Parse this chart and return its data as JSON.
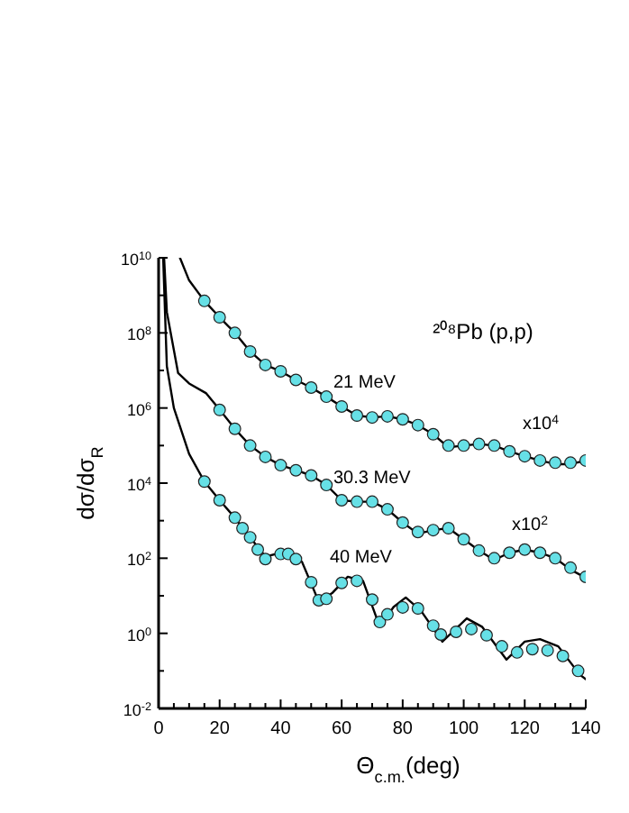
{
  "chart_data": {
    "type": "line",
    "title": "²⁰⁸Pb (p,p)",
    "xlabel": "Θ$_{c.m.}$(deg)",
    "ylabel": "dσ/dσ$_{R}$",
    "log": "y",
    "xlim": [
      0,
      140
    ],
    "ylim": [
      0.01,
      10000000000
    ],
    "xticks": [
      0,
      20,
      40,
      60,
      80,
      100,
      120,
      140
    ],
    "yticks": [
      {
        "value": 0.01,
        "label": "10$^{-2}$"
      },
      {
        "value": 1,
        "label": "10$^{0}$"
      },
      {
        "value": 100,
        "label": "10$^{2}$"
      },
      {
        "value": 10000,
        "label": "10$^{4}$"
      },
      {
        "value": 1000000,
        "label": "10$^{6}$"
      },
      {
        "value": 100000000,
        "label": "10$^{8}$"
      },
      {
        "value": 10000000000,
        "label": "10$^{10}$"
      }
    ],
    "annotations": [
      "21 MeV",
      "30.3 MeV",
      "40 MeV",
      "x10$^{4}$",
      "x10$^{2}$"
    ],
    "series": [
      {
        "color": "#000000",
        "line_style": "solid",
        "x": [
          7,
          10,
          15,
          20,
          25,
          30,
          35,
          40,
          45,
          50,
          55,
          60,
          65,
          70,
          75,
          80,
          85,
          90,
          95,
          100,
          105,
          110,
          115,
          120,
          125,
          130,
          135,
          140
        ],
        "values": [
          10000000000.0,
          2500000000.0,
          710000000.0,
          260000000.0,
          100000000.0,
          32000000.0,
          14000000.0,
          9500000.0,
          5600000.0,
          3500000.0,
          2000000.0,
          1100000.0,
          630000.0,
          560000.0,
          600000.0,
          500000.0,
          350000.0,
          200000.0,
          90000.0,
          100000.0,
          110000.0,
          100000.0,
          70000.0,
          52000.0,
          40000.0,
          32000.0,
          32000.0,
          40000.0
        ]
      },
      {
        "color": "#000000",
        "line_style": "solid",
        "x": [
          1.8,
          2.7,
          6.4,
          10,
          15.5,
          20,
          25,
          30,
          35,
          40,
          45,
          50,
          55,
          60,
          65,
          70,
          75,
          80,
          85,
          90,
          95,
          100,
          105,
          110,
          115,
          120,
          125,
          130,
          135,
          140
        ],
        "values": [
          10000000000.0,
          360000000.0,
          8500000.0,
          4500000.0,
          2500000.0,
          900000.0,
          280000.0,
          100000.0,
          50000.0,
          30000.0,
          22000.0,
          16000.0,
          8900,
          3500,
          3200,
          3200,
          2000,
          890,
          450,
          560,
          630,
          320,
          160,
          90,
          140,
          170,
          140,
          100,
          50,
          30
        ]
      },
      {
        "color": "#000000",
        "line_style": "solid",
        "x": [
          1.5,
          2.7,
          5,
          10,
          15,
          20,
          25,
          30,
          35,
          40,
          43,
          47,
          52.5,
          57,
          62,
          67,
          72.5,
          77,
          81,
          86,
          93,
          101,
          106,
          114,
          120,
          125,
          131,
          138,
          140
        ],
        "values": [
          10000000000.0,
          13000000.0,
          1000000.0,
          60000.0,
          11000,
          3500,
          1200,
          360,
          110,
          140,
          150,
          80,
          7,
          12,
          32,
          25,
          1.5,
          5,
          9,
          4,
          0.6,
          2.5,
          1.5,
          0.2,
          0.6,
          0.7,
          0.45,
          0.08,
          0.06
        ]
      },
      {
        "type": "scatter",
        "color": "#66e0e6",
        "marker": "circle",
        "x": [
          15,
          20,
          25,
          30,
          35,
          40,
          45,
          50,
          55,
          60,
          65,
          70,
          75,
          80,
          85,
          90,
          95,
          100,
          105,
          110,
          115,
          120,
          125,
          130,
          135,
          140
        ],
        "values": [
          710000000.0,
          260000000.0,
          100000000.0,
          32000000.0,
          14000000.0,
          9500000.0,
          5600000.0,
          3500000.0,
          2000000.0,
          1100000.0,
          630000.0,
          560000.0,
          600000.0,
          500000.0,
          350000.0,
          200000.0,
          100000.0,
          100000.0,
          110000.0,
          100000.0,
          70000.0,
          52000.0,
          40000.0,
          35000.0,
          35000.0,
          40000.0
        ]
      },
      {
        "type": "scatter",
        "color": "#66e0e6",
        "marker": "circle",
        "x": [
          20,
          25,
          30,
          35,
          40,
          45,
          50,
          55,
          60,
          65,
          70,
          75,
          80,
          85,
          90,
          95,
          100,
          105,
          110,
          115,
          120,
          125,
          130,
          135,
          140
        ],
        "values": [
          890000.0,
          280000.0,
          100000.0,
          50000.0,
          30000.0,
          22000.0,
          16000.0,
          8900,
          3500,
          3200,
          3200,
          2000,
          890,
          500,
          560,
          630,
          320,
          160,
          100,
          140,
          170,
          140,
          100,
          56,
          32
        ]
      },
      {
        "type": "scatter",
        "color": "#66e0e6",
        "marker": "circle",
        "x": [
          15,
          20,
          25,
          27.5,
          30,
          32.5,
          35,
          40,
          42.5,
          45,
          50,
          52.5,
          55,
          60,
          65,
          70,
          72.5,
          75,
          80,
          85,
          90,
          92.5,
          97.5,
          102.5,
          107.5,
          112.5,
          117.5,
          122.5,
          127.5,
          132.5,
          137.5
        ],
        "values": [
          11000,
          3500,
          1200,
          630,
          360,
          170,
          95,
          130,
          130,
          95,
          23,
          7.6,
          8.3,
          22,
          25,
          7.9,
          2,
          3.2,
          4.9,
          4.6,
          1.6,
          0.93,
          1.1,
          1.3,
          0.89,
          0.45,
          0.31,
          0.38,
          0.35,
          0.25,
          0.1
        ]
      }
    ]
  }
}
